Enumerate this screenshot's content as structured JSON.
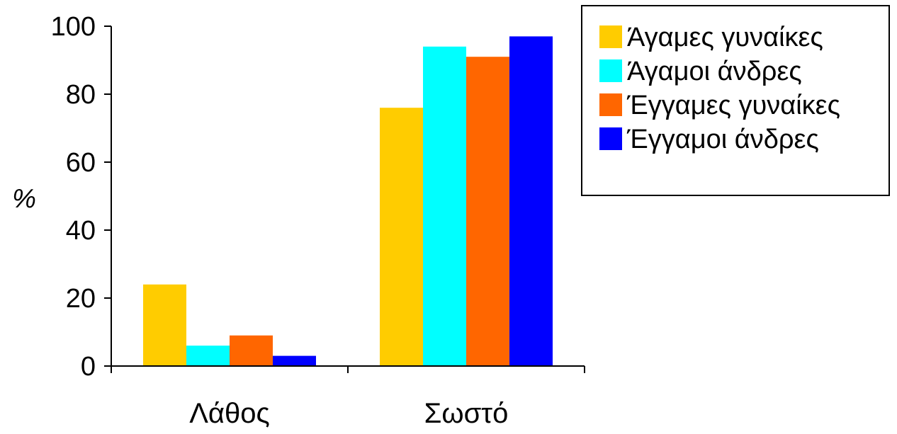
{
  "chart_data": {
    "type": "bar",
    "title": "",
    "xlabel": "",
    "ylabel": "%",
    "ylim": [
      0,
      100
    ],
    "yticks": [
      0,
      20,
      40,
      60,
      80,
      100
    ],
    "categories": [
      "Λάθος",
      "Σωστό"
    ],
    "series": [
      {
        "name": "Άγαμες γυναίκες",
        "color": "#FFCC00",
        "values": [
          24,
          76
        ]
      },
      {
        "name": "Άγαμοι άνδρες",
        "color": "#00FFFF",
        "values": [
          6,
          94
        ]
      },
      {
        "name": "Έγγαμες γυναίκες",
        "color": "#FF6600",
        "values": [
          9,
          91
        ]
      },
      {
        "name": "Έγγαμοι άνδρες",
        "color": "#0000FF",
        "values": [
          3,
          97
        ]
      }
    ],
    "grid": false,
    "legend_position": "top-right"
  }
}
